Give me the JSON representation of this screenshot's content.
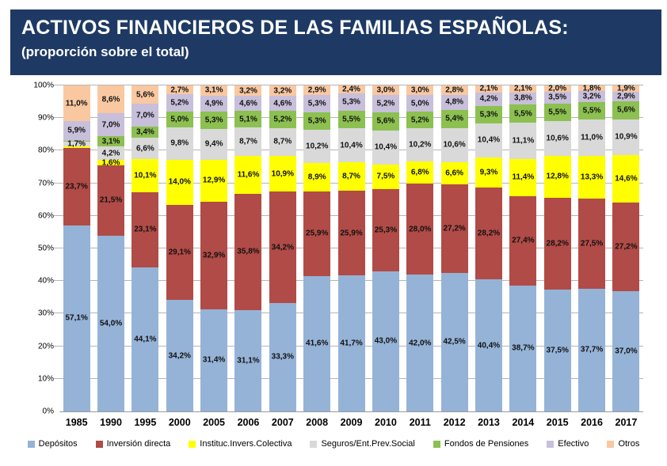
{
  "header": {
    "title": "ACTIVOS FINANCIEROS DE LAS FAMILIAS ESPAÑOLAS:",
    "subtitle": "(proporción sobre el total)"
  },
  "chart_data": {
    "type": "bar",
    "stacked": true,
    "normalized_to_100_percent": true,
    "grid": true,
    "legend_position": "bottom",
    "ylim": [
      0,
      100
    ],
    "yticks": [
      "0%",
      "10%",
      "20%",
      "30%",
      "40%",
      "50%",
      "60%",
      "70%",
      "80%",
      "90%",
      "100%"
    ],
    "categories": [
      "1985",
      "1990",
      "1995",
      "2000",
      "2005",
      "2006",
      "2007",
      "2008",
      "2009",
      "2010",
      "2011",
      "2012",
      "2013",
      "2014",
      "2015",
      "2016",
      "2017"
    ],
    "series": [
      {
        "name": "Depósitos",
        "color": "#95B3D7",
        "values": [
          57.1,
          54.0,
          44.1,
          34.2,
          31.4,
          31.1,
          33.3,
          41.6,
          41.7,
          43.0,
          42.0,
          42.5,
          40.4,
          38.7,
          37.5,
          37.7,
          37.0
        ],
        "labels": [
          "57,1%",
          "54,0%",
          "44,1%",
          "34,2%",
          "31,4%",
          "31,1%",
          "33,3%",
          "41,6%",
          "41,7%",
          "43,0%",
          "42,0%",
          "42,5%",
          "40,4%",
          "38,7%",
          "37,5%",
          "37,7%",
          "37,0%"
        ]
      },
      {
        "name": "Inversión directa",
        "color": "#B14B47",
        "values": [
          23.7,
          21.5,
          23.1,
          29.1,
          32.9,
          35.8,
          34.2,
          25.9,
          25.9,
          25.3,
          28.0,
          27.2,
          28.2,
          27.4,
          28.2,
          27.5,
          27.2
        ],
        "labels": [
          "23,7%",
          "21,5%",
          "23,1%",
          "29,1%",
          "32,9%",
          "35,8%",
          "34,2%",
          "25,9%",
          "25,9%",
          "25,3%",
          "28,0%",
          "27,2%",
          "28,2%",
          "27,4%",
          "28,2%",
          "27,5%",
          "27,2%"
        ]
      },
      {
        "name": "Instituc.Invers.Colectiva",
        "color": "#FFFF00",
        "values": [
          0.4,
          1.6,
          10.1,
          14.0,
          12.9,
          11.6,
          10.9,
          8.9,
          8.7,
          7.5,
          6.8,
          6.6,
          9.3,
          11.4,
          12.8,
          13.3,
          14.6
        ],
        "labels": [
          "",
          "1,6%",
          "10,1%",
          "14,0%",
          "12,9%",
          "11,6%",
          "10,9%",
          "8,9%",
          "8,7%",
          "7,5%",
          "6,8%",
          "6,6%",
          "9,3%",
          "11,4%",
          "12,8%",
          "13,3%",
          "14,6%"
        ]
      },
      {
        "name": "Seguros/Ent.Prev.Social",
        "color": "#D9D9D9",
        "values": [
          1.7,
          4.2,
          6.6,
          9.8,
          9.4,
          8.7,
          8.7,
          10.2,
          10.4,
          10.4,
          10.2,
          10.6,
          10.4,
          11.1,
          10.6,
          11.0,
          10.9
        ],
        "labels": [
          "1,7%",
          "4,2%",
          "6,6%",
          "9,8%",
          "9,4%",
          "8,7%",
          "8,7%",
          "10,2%",
          "10,4%",
          "10,4%",
          "10,2%",
          "10,6%",
          "10,4%",
          "11,1%",
          "10,6%",
          "11,0%",
          "10,9%"
        ]
      },
      {
        "name": "Fondos de Pensiones",
        "color": "#8CC050",
        "values": [
          0.2,
          3.1,
          3.4,
          5.0,
          5.3,
          5.1,
          5.2,
          5.3,
          5.5,
          5.6,
          5.2,
          5.4,
          5.3,
          5.5,
          5.5,
          5.5,
          5.6
        ],
        "labels": [
          "",
          "3,1%",
          "3,4%",
          "5,0%",
          "5,3%",
          "5,1%",
          "5,2%",
          "5,3%",
          "5,5%",
          "5,6%",
          "5,2%",
          "5,4%",
          "5,3%",
          "5,5%",
          "5,5%",
          "5,5%",
          "5,6%"
        ]
      },
      {
        "name": "Efectivo",
        "color": "#C8BFDA",
        "values": [
          5.9,
          7.0,
          7.0,
          5.2,
          4.9,
          4.6,
          4.6,
          5.3,
          5.3,
          5.2,
          5.0,
          4.8,
          4.2,
          3.8,
          3.5,
          3.2,
          2.9
        ],
        "labels": [
          "5,9%",
          "7,0%",
          "7,0%",
          "5,2%",
          "4,9%",
          "4,6%",
          "4,6%",
          "5,3%",
          "5,3%",
          "5,2%",
          "5,0%",
          "4,8%",
          "4,2%",
          "3,8%",
          "3,5%",
          "3,2%",
          "2,9%"
        ]
      },
      {
        "name": "Otros",
        "color": "#F9C8A1",
        "values": [
          11.0,
          8.6,
          5.6,
          2.7,
          3.1,
          3.2,
          3.2,
          2.9,
          2.4,
          3.0,
          3.0,
          2.8,
          2.1,
          2.1,
          2.0,
          1.8,
          1.9
        ],
        "labels": [
          "11,0%",
          "8,6%",
          "5,6%",
          "2,7%",
          "3,1%",
          "3,2%",
          "3,2%",
          "2,9%",
          "2,4%",
          "3,0%",
          "3,0%",
          "2,8%",
          "2,1%",
          "2,1%",
          "2,0%",
          "1,8%",
          "1,9%"
        ]
      }
    ]
  }
}
